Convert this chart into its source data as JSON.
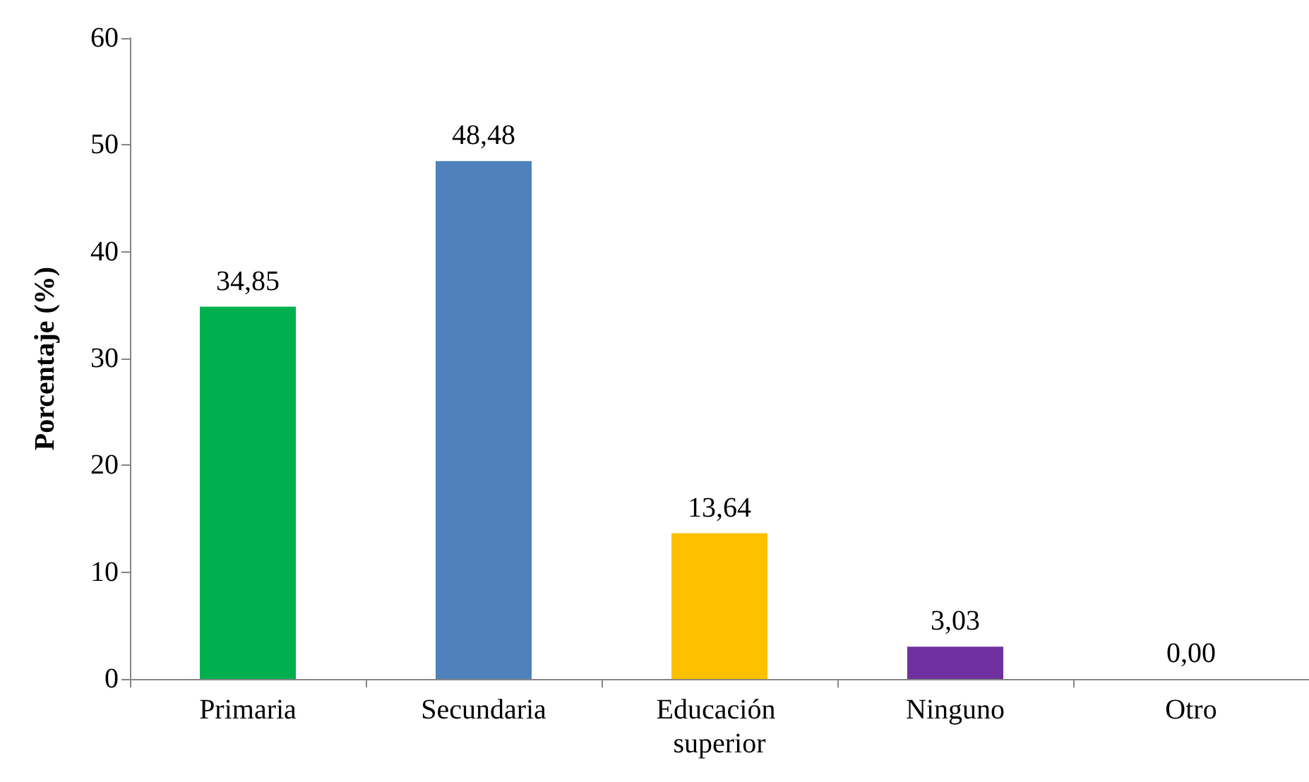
{
  "chart_data": {
    "type": "bar",
    "ylabel": "Porcentaje (%)",
    "categories": [
      "Primaria",
      "Secundaria",
      "Educación superior",
      "Ninguno",
      "Otro"
    ],
    "values": [
      34.85,
      48.48,
      13.64,
      3.03,
      0
    ],
    "colors": [
      "#00b050",
      "#4f81bd",
      "#ffc000",
      "#7030a0",
      "#a5a5a5"
    ],
    "value_labels": [
      "34,85",
      "48,48",
      "13,64",
      "3,03",
      "0,00"
    ],
    "ylim": [
      0,
      60
    ],
    "yticks": [
      0,
      10,
      20,
      30,
      40,
      50,
      60
    ]
  }
}
